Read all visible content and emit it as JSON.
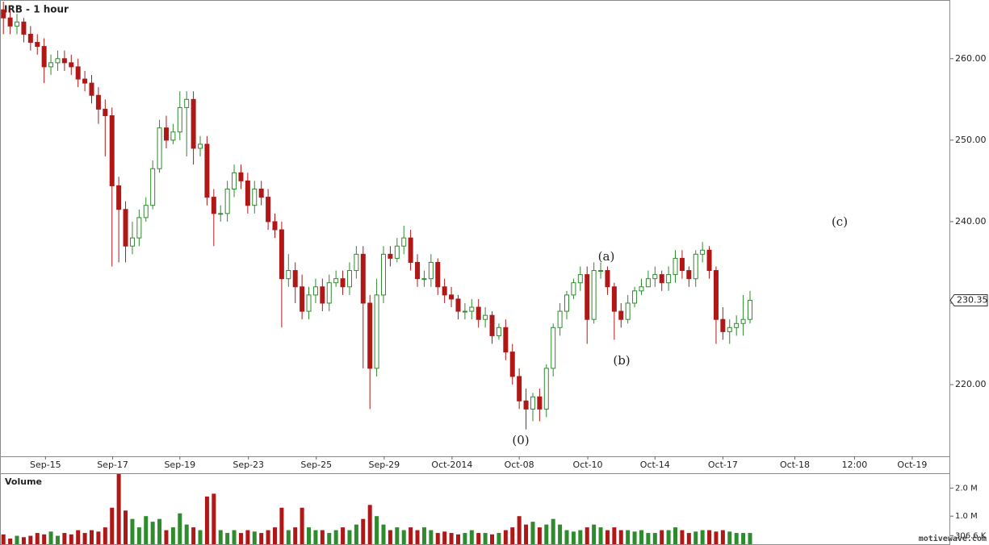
{
  "chart_data": {
    "type": "candlestick",
    "title": "IRB - 1 hour",
    "annotations": [
      "(0)",
      "(a)",
      "(b)",
      "(c)"
    ],
    "watermark": "motivewave.com",
    "xlim": [
      0,
      140
    ],
    "xticks": [
      {
        "value": 6.7,
        "label": "Sep-15"
      },
      {
        "value": 16.6,
        "label": "Sep-17"
      },
      {
        "value": 26.5,
        "label": "Sep-19"
      },
      {
        "value": 36.6,
        "label": "Sep-23"
      },
      {
        "value": 46.6,
        "label": "Sep-25"
      },
      {
        "value": 56.6,
        "label": "Sep-29"
      },
      {
        "value": 66.6,
        "label": "Oct-2014"
      },
      {
        "value": 76.5,
        "label": "Oct-08"
      },
      {
        "value": 86.6,
        "label": "Oct-10"
      },
      {
        "value": 96.5,
        "label": "Oct-14"
      },
      {
        "value": 106.5,
        "label": "Oct-17"
      },
      {
        "value": 117.1,
        "label": "Oct-18"
      },
      {
        "value": 125.9,
        "label": "12:00"
      },
      {
        "value": 134.4,
        "label": "Oct-19"
      }
    ],
    "ylim": [
      211.2,
      267.2
    ],
    "yticks": [
      {
        "value": 220,
        "label": "220.00"
      },
      {
        "value": 230,
        "label": "230.00"
      },
      {
        "value": 240,
        "label": "240.00"
      },
      {
        "value": 250,
        "label": "250.00"
      },
      {
        "value": 260,
        "label": "260.00"
      }
    ],
    "up_color": "#2e8b2e",
    "down_color": "#b01818",
    "open": [
      266,
      265,
      264,
      264.5,
      263,
      262,
      261.5,
      259,
      259.5,
      260,
      259.5,
      259,
      257.5,
      257,
      255.5,
      253.8,
      253,
      244.4,
      241.5,
      237,
      238,
      240.5,
      242,
      246.5,
      251.5,
      250,
      251,
      254,
      255,
      249,
      249.5,
      243,
      241,
      241,
      244,
      246,
      245,
      242,
      244,
      243,
      240,
      239,
      233,
      234,
      232,
      229,
      231,
      232,
      230,
      232.5,
      233,
      232,
      234,
      236,
      230,
      222,
      231,
      236,
      235.5,
      237,
      238,
      235,
      233,
      233,
      235,
      232,
      231,
      230.5,
      229,
      229,
      229.5,
      228,
      228.5,
      226,
      227,
      224,
      221,
      218,
      217,
      218.5,
      217,
      222,
      227,
      229,
      231,
      232.5,
      233.5,
      228,
      234,
      234,
      232,
      229,
      228,
      230,
      231.5,
      232,
      233,
      233.5,
      232.5,
      233.5,
      235.5,
      234,
      233,
      236,
      236.5,
      234,
      228,
      226.5,
      227,
      227.5,
      228
    ],
    "high": [
      267,
      266,
      265.5,
      265,
      264,
      263,
      262.5,
      260.5,
      261,
      261,
      260.5,
      260,
      258.5,
      258,
      256.5,
      255,
      254,
      245.5,
      242.5,
      240,
      241.5,
      243,
      247.5,
      252.5,
      253,
      252,
      256,
      256,
      256,
      250.5,
      250.5,
      244,
      242,
      245,
      247,
      247,
      246,
      245,
      245,
      244,
      241,
      240,
      236,
      235,
      233.5,
      232,
      233,
      233,
      233.5,
      234,
      234,
      235,
      237,
      237,
      231,
      233,
      237,
      237,
      238,
      239.5,
      239,
      236,
      234,
      236,
      235.5,
      233,
      232,
      231,
      230,
      230.5,
      230.5,
      229.5,
      229,
      227.5,
      228,
      225,
      222,
      219.5,
      219,
      219.5,
      222.5,
      227.5,
      230,
      231.5,
      233,
      234.5,
      234.5,
      235,
      235,
      234.5,
      232.5,
      230,
      231,
      232,
      233,
      234,
      234.5,
      234,
      234.5,
      236.5,
      236.5,
      234.5,
      236.5,
      237.5,
      237,
      234.5,
      229.5,
      228,
      228.5,
      231,
      231.5
    ],
    "low": [
      263,
      263,
      263,
      262,
      261,
      260.5,
      257,
      258,
      258.5,
      258.5,
      258,
      256.5,
      256,
      254.5,
      252,
      248,
      234.5,
      235,
      235,
      236,
      237,
      240,
      241.5,
      246,
      249,
      249.5,
      250,
      248,
      247,
      248,
      242,
      237,
      240,
      240,
      243,
      244,
      241,
      241,
      242,
      239,
      238,
      227,
      232,
      230,
      228,
      228,
      230,
      229,
      229,
      232,
      231,
      231,
      233,
      222,
      217,
      221,
      230,
      234.5,
      235,
      236,
      234,
      232,
      232,
      232,
      231,
      230,
      229.5,
      228,
      228,
      228,
      227,
      227,
      225,
      225.5,
      223,
      220,
      217,
      214.5,
      215.5,
      215.5,
      216,
      221,
      226,
      228,
      230.5,
      231.5,
      225,
      227.5,
      233,
      231,
      225.5,
      227,
      227.5,
      229.5,
      231,
      232,
      232,
      231.5,
      231.5,
      232.5,
      233,
      232,
      232,
      235,
      233,
      225,
      225.5,
      225,
      226,
      226,
      227.5
    ],
    "close": [
      265,
      264,
      264.5,
      263,
      262,
      261.5,
      259,
      259.5,
      260,
      259.5,
      259,
      257.5,
      257,
      255.5,
      253.8,
      253,
      244.4,
      241.5,
      237,
      238,
      240.5,
      242,
      246.5,
      251.5,
      250,
      251,
      254,
      255,
      249,
      249.5,
      243,
      241,
      241,
      244,
      246,
      245,
      242,
      244,
      243,
      240,
      239,
      233,
      234,
      232,
      229,
      231,
      232,
      230,
      232.5,
      233,
      232,
      234,
      236,
      230,
      222,
      231,
      236,
      235.5,
      237,
      238,
      235,
      233,
      233,
      235,
      232,
      231,
      230.5,
      229,
      229,
      229.5,
      228,
      228.5,
      226,
      227,
      224,
      221,
      218,
      217,
      218.5,
      217,
      222,
      227,
      229,
      231,
      232.5,
      233.5,
      228,
      234,
      234,
      232,
      229,
      228,
      230,
      231.5,
      232,
      233,
      233.5,
      232.5,
      233.5,
      235.5,
      234,
      233,
      236,
      236.5,
      234,
      228,
      226.5,
      227,
      227.5,
      228,
      230.35
    ],
    "volume_panel": {
      "title": "Volume",
      "ylim": [
        0,
        2.5
      ],
      "yticks": [
        {
          "value": 0.3066,
          "label": "306.6 K"
        },
        {
          "value": 1,
          "label": "1.0 M"
        },
        {
          "value": 2,
          "label": "2.0 M"
        }
      ],
      "values": [
        0.35,
        0.2,
        0.3,
        0.25,
        0.3,
        0.4,
        0.35,
        0.45,
        0.3,
        0.4,
        0.35,
        0.5,
        0.4,
        0.5,
        0.45,
        0.6,
        1.3,
        2.5,
        1.2,
        0.9,
        0.6,
        1.0,
        0.8,
        0.9,
        0.5,
        0.6,
        1.1,
        0.7,
        0.6,
        0.5,
        1.7,
        1.8,
        0.5,
        0.4,
        0.5,
        0.4,
        0.5,
        0.45,
        0.4,
        0.5,
        0.6,
        1.3,
        0.5,
        0.6,
        1.3,
        0.6,
        0.5,
        0.5,
        0.4,
        0.5,
        0.6,
        0.5,
        0.7,
        0.9,
        1.4,
        1.0,
        0.7,
        0.5,
        0.6,
        0.5,
        0.6,
        0.5,
        0.6,
        0.5,
        0.4,
        0.45,
        0.4,
        0.35,
        0.4,
        0.5,
        0.4,
        0.4,
        0.35,
        0.4,
        0.5,
        0.6,
        1.0,
        0.7,
        0.8,
        0.6,
        0.7,
        0.9,
        0.7,
        0.5,
        0.45,
        0.5,
        0.6,
        0.7,
        0.6,
        0.5,
        0.6,
        0.5,
        0.5,
        0.45,
        0.5,
        0.4,
        0.4,
        0.5,
        0.5,
        0.6,
        0.5,
        0.4,
        0.45,
        0.5,
        0.5,
        0.45,
        0.5,
        0.45,
        0.4,
        0.4,
        0.4
      ]
    }
  }
}
